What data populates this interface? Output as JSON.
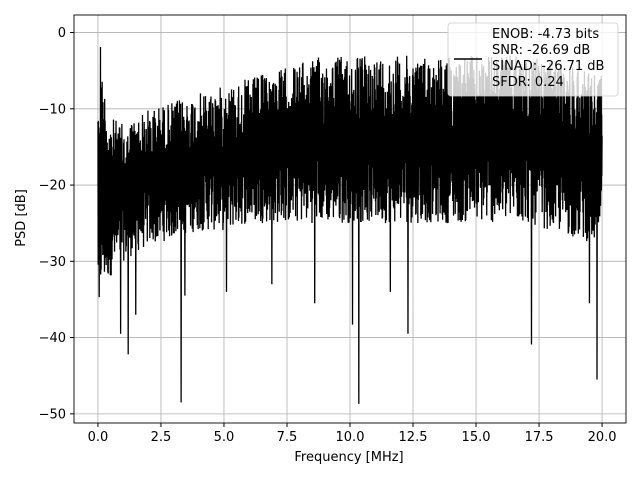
{
  "chart_data": {
    "type": "line",
    "title": "",
    "xlabel": "Frequency [MHz]",
    "ylabel": "PSD [dB]",
    "xlim": [
      -0.95,
      20.95
    ],
    "ylim": [
      -51.2,
      2.3
    ],
    "xticks": [
      0.0,
      2.5,
      5.0,
      7.5,
      10.0,
      12.5,
      15.0,
      17.5,
      20.0
    ],
    "xtick_labels": [
      "0.0",
      "2.5",
      "5.0",
      "7.5",
      "10.0",
      "12.5",
      "15.0",
      "17.5",
      "20.0"
    ],
    "yticks": [
      0,
      -10,
      -20,
      -30,
      -40,
      -50
    ],
    "ytick_labels": [
      "0",
      "−10",
      "−20",
      "−30",
      "−40",
      "−50"
    ],
    "grid": true,
    "legend_position": "upper right",
    "line_color": "#000000",
    "series": [
      {
        "name": "ENOB: -4.73 bits\nSNR: -26.69 dB\nSINAD: -26.71 dB\nSFDR: 0.24",
        "x_range": [
          0,
          20
        ],
        "envelope": {
          "x": [
            0,
            0.5,
            1,
            2,
            3,
            4,
            5,
            6,
            7,
            8,
            9,
            10,
            11,
            12,
            13,
            14,
            15,
            16,
            17,
            18,
            19,
            20
          ],
          "upper": [
            -2,
            -11,
            -12,
            -10,
            -9,
            -8,
            -7,
            -6,
            -5,
            -4,
            -3,
            -3,
            -3,
            -3,
            -3,
            -3,
            -3,
            -3,
            -3,
            -4,
            -4,
            -5
          ],
          "lower": [
            -35,
            -32,
            -30,
            -28,
            -27,
            -26,
            -26,
            -25,
            -25,
            -25,
            -25,
            -25,
            -25,
            -25,
            -25,
            -25,
            -25,
            -25,
            -25,
            -26,
            -27,
            -28
          ]
        },
        "spikes": [
          {
            "x": 0.05,
            "y": -34.7
          },
          {
            "x": 0.1,
            "y": -1.9
          },
          {
            "x": 0.9,
            "y": -39.5
          },
          {
            "x": 1.2,
            "y": -42.2
          },
          {
            "x": 1.5,
            "y": -37.0
          },
          {
            "x": 3.3,
            "y": -48.5
          },
          {
            "x": 3.45,
            "y": -34.5
          },
          {
            "x": 5.1,
            "y": -34.0
          },
          {
            "x": 6.9,
            "y": -33.0
          },
          {
            "x": 8.6,
            "y": -35.5
          },
          {
            "x": 10.1,
            "y": -38.3
          },
          {
            "x": 10.35,
            "y": -48.7
          },
          {
            "x": 11.6,
            "y": -34.0
          },
          {
            "x": 12.3,
            "y": -39.5
          },
          {
            "x": 17.2,
            "y": -40.9
          },
          {
            "x": 19.5,
            "y": -35.5
          },
          {
            "x": 19.8,
            "y": -45.5
          }
        ]
      }
    ]
  },
  "legend": {
    "line1": "ENOB: -4.73 bits",
    "line2": "SNR: -26.69 dB",
    "line3": "SINAD: -26.71 dB",
    "line4": "SFDR: 0.24"
  }
}
